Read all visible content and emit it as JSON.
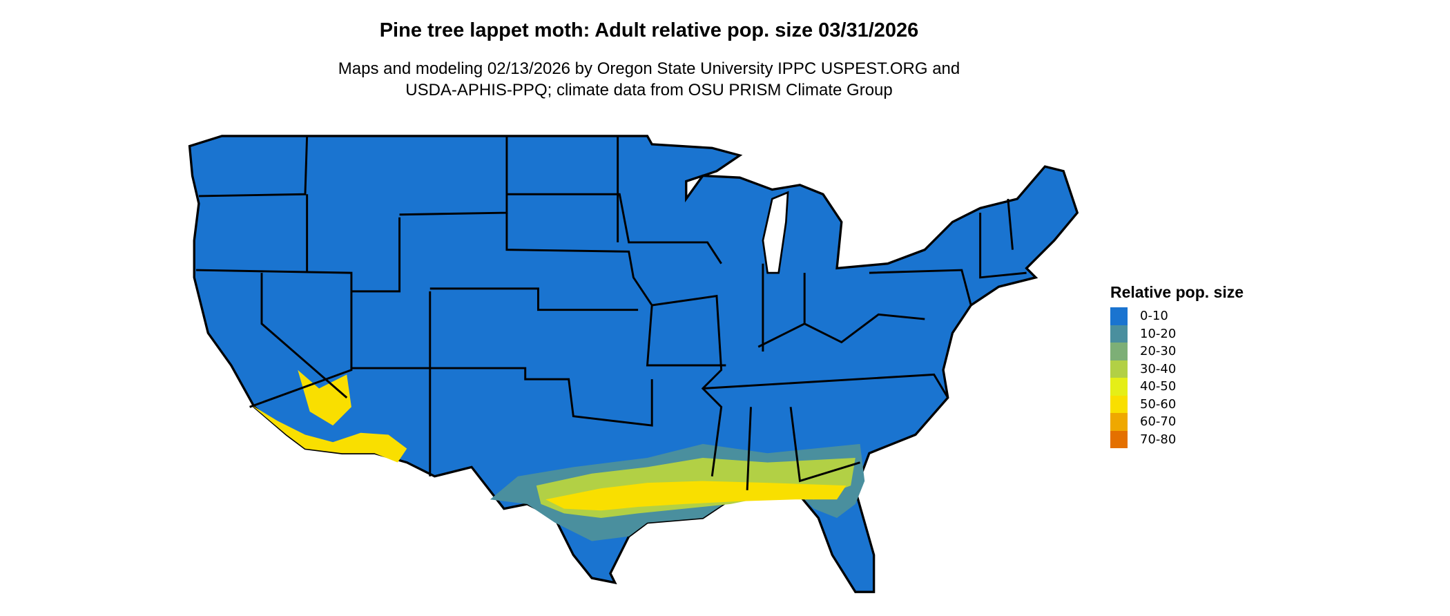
{
  "title": "Pine tree lappet moth: Adult relative pop. size 03/31/2026",
  "subtitle_lines": [
    "Maps and modeling 02/13/2026 by Oregon State University IPPC USPEST.ORG and",
    "USDA-APHIS-PPQ; climate data from OSU PRISM Climate Group"
  ],
  "chart_data": {
    "type": "heatmap",
    "region": "contiguous United States",
    "legend": {
      "title": "Relative pop. size",
      "placement": "right",
      "classes": [
        {
          "label": "0-10",
          "color": "#1a74d0"
        },
        {
          "label": "10-20",
          "color": "#4a8f9e"
        },
        {
          "label": "20-30",
          "color": "#7daf76"
        },
        {
          "label": "30-40",
          "color": "#b2d045"
        },
        {
          "label": "40-50",
          "color": "#e5ee17"
        },
        {
          "label": "50-60",
          "color": "#f9df00"
        },
        {
          "label": "60-70",
          "color": "#efa800"
        },
        {
          "label": "70-80",
          "color": "#e47000"
        }
      ]
    },
    "state_border_color": "#000000"
  }
}
